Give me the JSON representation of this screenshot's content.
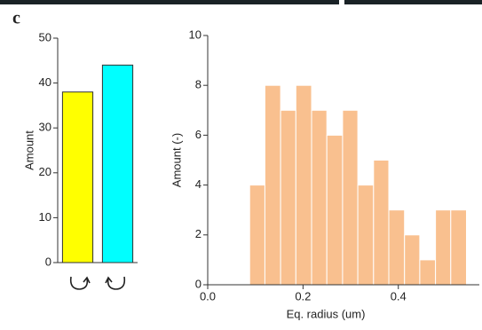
{
  "panel_label": "c",
  "chart_data": [
    {
      "type": "bar",
      "y_label": "Amount",
      "categories": [
        null,
        null
      ],
      "values": [
        38,
        44
      ],
      "colors": [
        "#ffff00",
        "#00ffff"
      ],
      "ylim": [
        0,
        50
      ],
      "yticks": [
        0,
        10,
        20,
        30,
        40,
        50
      ]
    },
    {
      "type": "histogram",
      "x_label": "Eq. radius (um)",
      "y_label": "Amount (-)",
      "bins": [
        0.088,
        0.12,
        0.153,
        0.185,
        0.218,
        0.25,
        0.283,
        0.315,
        0.348,
        0.38,
        0.413,
        0.445,
        0.478,
        0.51,
        0.543
      ],
      "values": [
        4,
        8,
        7,
        8,
        7,
        6,
        7,
        4,
        5,
        3,
        2,
        1,
        3,
        3
      ],
      "color": "#f9c08f",
      "xlim": [
        0,
        0.57
      ],
      "xticks": [
        {
          "value": 0,
          "label": "0.0"
        },
        0.2,
        0.4
      ],
      "ylim": [
        0,
        10
      ],
      "yticks": [
        0,
        2,
        4,
        6,
        8,
        10
      ]
    }
  ]
}
